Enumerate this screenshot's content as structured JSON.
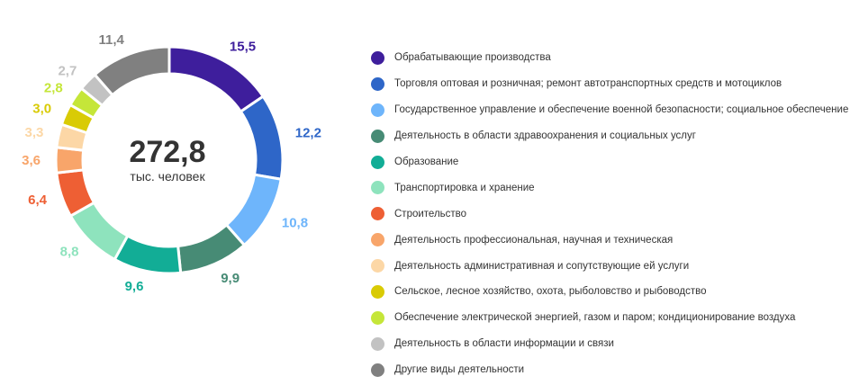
{
  "chart_data": {
    "type": "pie",
    "center": {
      "total": "272,8",
      "unit": "тыс. человек"
    },
    "slices": [
      {
        "name": "Обрабатывающие производства",
        "value": 15.5,
        "label": "15,5",
        "color": "#3e1e9c"
      },
      {
        "name": "Торговля оптовая и розничная; ремонт автотранспортных средств и мотоциклов",
        "value": 12.2,
        "label": "12,2",
        "color": "#2e66c8"
      },
      {
        "name": "Государственное управление и обеспечение военной безопасности; социальное обеспечение",
        "value": 10.8,
        "label": "10,8",
        "color": "#6eb5fb"
      },
      {
        "name": "Деятельность в области здравоохранения и социальных услуг",
        "value": 9.9,
        "label": "9,9",
        "color": "#478b75"
      },
      {
        "name": "Образование",
        "value": 9.6,
        "label": "9,6",
        "color": "#12ad96"
      },
      {
        "name": "Транспортировка и хранение",
        "value": 8.8,
        "label": "8,8",
        "color": "#8ee3bd"
      },
      {
        "name": "Строительство",
        "value": 6.4,
        "label": "6,4",
        "color": "#ee5f34"
      },
      {
        "name": "Деятельность профессиональная, научная и техническая",
        "value": 3.6,
        "label": "3,6",
        "color": "#f8a56a"
      },
      {
        "name": "Деятельность административная и сопутствующие ей услуги",
        "value": 3.3,
        "label": "3,3",
        "color": "#fcd7a6"
      },
      {
        "name": "Сельское, лесное хозяйство, охота, рыболовство и рыбоводство",
        "value": 3.0,
        "label": "3,0",
        "color": "#d9cb05"
      },
      {
        "name": "Обеспечение электрической энергией, газом и паром; кондиционирование воздуха",
        "value": 2.8,
        "label": "2,8",
        "color": "#c5e639"
      },
      {
        "name": "Деятельность в области информации и связи",
        "value": 2.7,
        "label": "2,7",
        "color": "#c2c2c2"
      },
      {
        "name": "Другие виды деятельности",
        "value": 11.4,
        "label": "11,4",
        "color": "#808080"
      }
    ],
    "legend_position": "right"
  }
}
